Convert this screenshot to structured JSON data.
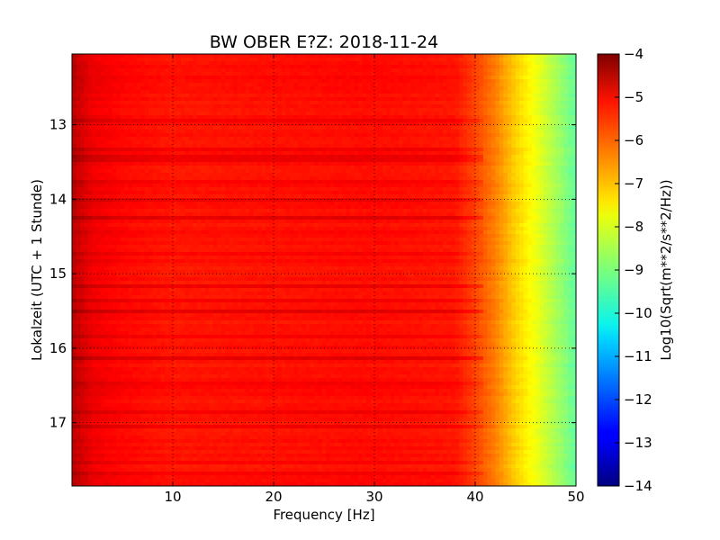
{
  "chart_data": {
    "type": "heatmap",
    "title": "BW OBER E?Z: 2018-11-24",
    "xlabel": "Frequency [Hz]",
    "ylabel": "Lokalzeit (UTC + 1 Stunde)",
    "xlim": [
      0,
      50
    ],
    "ylim": [
      12.05,
      17.85
    ],
    "y_inverted": true,
    "x_ticks": [
      10,
      20,
      30,
      40,
      50
    ],
    "x_tick_labels": [
      "10",
      "20",
      "30",
      "40",
      "50"
    ],
    "y_ticks": [
      13,
      14,
      15,
      16,
      17
    ],
    "y_tick_labels": [
      "13",
      "14",
      "15",
      "16",
      "17"
    ],
    "grid": true,
    "colormap": "jet",
    "colorbar": {
      "label": "Log10(Sqrt(m**2/s**2/Hz))",
      "min": -14,
      "max": -4,
      "ticks": [
        -4,
        -5,
        -6,
        -7,
        -8,
        -9,
        -10,
        -11,
        -12,
        -13,
        -14
      ],
      "tick_labels": [
        "−4",
        "−5",
        "−6",
        "−7",
        "−8",
        "−9",
        "−10",
        "−11",
        "−12",
        "−13",
        "−14"
      ]
    },
    "frequency_profile": {
      "frequency_hz": [
        0,
        2,
        5,
        10,
        20,
        30,
        38,
        40,
        42,
        44,
        46,
        48,
        50
      ],
      "log10_amplitude": [
        -4.6,
        -5.1,
        -5.3,
        -5.45,
        -5.4,
        -5.35,
        -5.45,
        -5.9,
        -6.5,
        -7.3,
        -7.9,
        -8.6,
        -9.3
      ]
    },
    "strong_bands_local_time": [
      13.45,
      14.0,
      14.25,
      15.15,
      15.5,
      16.15
    ],
    "weak_bands_local_time": [
      12.35,
      12.95,
      13.35,
      13.75,
      14.45,
      14.75,
      15.35,
      15.85,
      16.5,
      16.85,
      17.05,
      17.55,
      17.7
    ]
  }
}
